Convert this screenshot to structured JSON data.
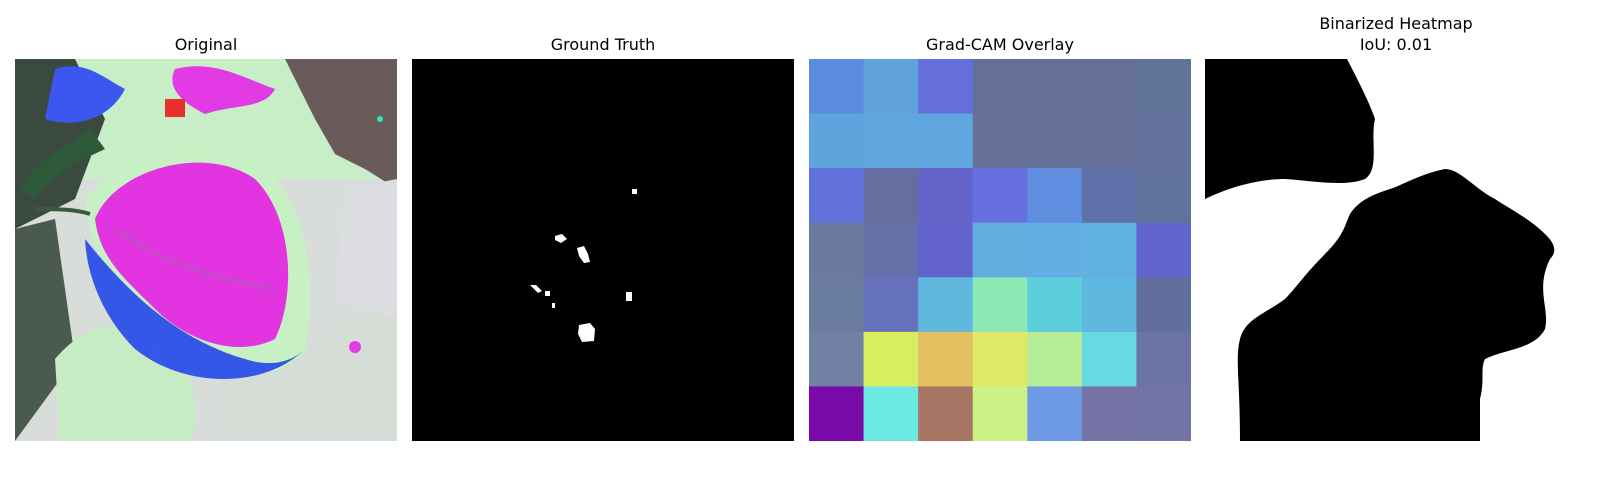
{
  "panels": {
    "original": {
      "title": "Original"
    },
    "ground_truth": {
      "title": "Ground Truth"
    },
    "gradcam": {
      "title": "Grad-CAM Overlay",
      "grid_colors": [
        [
          "#5b8bdc",
          "#5fa2dc",
          "#646fdc",
          "#657098",
          "#657098",
          "#647098",
          "#62739a"
        ],
        [
          "#5fa4dc",
          "#60a6de",
          "#61a7df",
          "#667098",
          "#657098",
          "#657098",
          "#62729c"
        ],
        [
          "#6272dc",
          "#646ea0",
          "#6264c8",
          "#6670e0",
          "#5f8ee0",
          "#6070a8",
          "#61729c"
        ],
        [
          "#6a7aa0",
          "#6670a8",
          "#6264cc",
          "#62ace0",
          "#62ade2",
          "#60b0e0",
          "#6266cc"
        ],
        [
          "#6a7ca0",
          "#6672bc",
          "#60b8de",
          "#8ce8b4",
          "#5ccedc",
          "#5eb8e0",
          "#626e9c"
        ],
        [
          "#7282a4",
          "#d8ee60",
          "#e2c060",
          "#e0e868",
          "#b6ec96",
          "#66dae0",
          "#6a74a6"
        ],
        [
          "#7a0aa8",
          "#6ce8e2",
          "#a87464",
          "#caf284",
          "#6e9ae6",
          "#7674a6",
          "#7274a6"
        ]
      ]
    },
    "binarized": {
      "title": "Binarized Heatmap",
      "subtitle": "IoU: 0.01"
    }
  }
}
